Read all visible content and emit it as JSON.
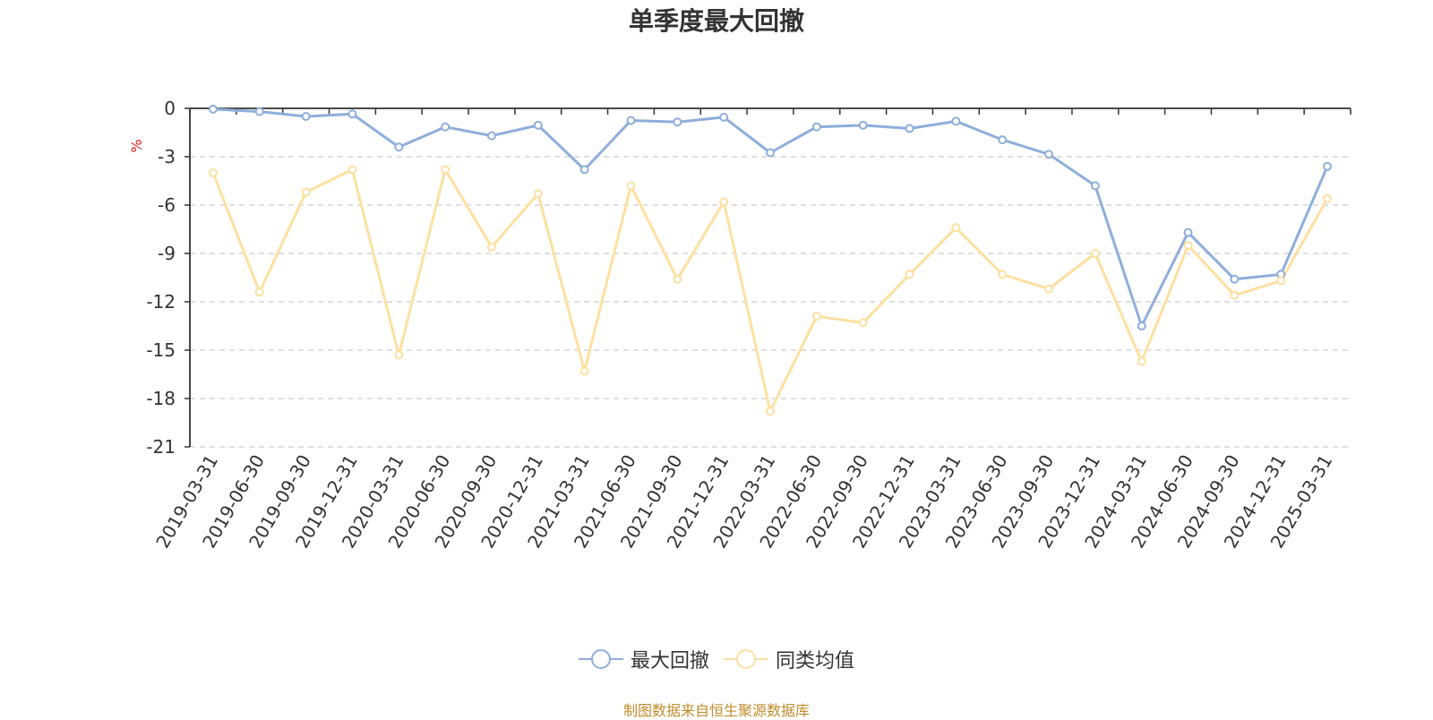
{
  "chart_data": {
    "type": "line",
    "title": "单季度最大回撤",
    "ylabel": "%",
    "ylim": [
      -21,
      0
    ],
    "yticks": [
      0,
      -3,
      -6,
      -9,
      -12,
      -15,
      -18,
      -21
    ],
    "grid": true,
    "legend_position": "bottom",
    "categories": [
      "2019-03-31",
      "2019-06-30",
      "2019-09-30",
      "2019-12-31",
      "2020-03-31",
      "2020-06-30",
      "2020-09-30",
      "2020-12-31",
      "2021-03-31",
      "2021-06-30",
      "2021-09-30",
      "2021-12-31",
      "2022-03-31",
      "2022-06-30",
      "2022-09-30",
      "2022-12-31",
      "2023-03-31",
      "2023-06-30",
      "2023-09-30",
      "2023-12-31",
      "2024-03-31",
      "2024-06-30",
      "2024-09-30",
      "2024-12-31",
      "2025-03-31"
    ],
    "series": [
      {
        "name": "最大回撤",
        "color": "#8eaedb",
        "values": [
          -0.05,
          -0.2,
          -0.5,
          -0.35,
          -2.4,
          -1.15,
          -1.7,
          -1.05,
          -3.8,
          -0.75,
          -0.85,
          -0.55,
          -2.75,
          -1.15,
          -1.05,
          -1.25,
          -0.8,
          -1.95,
          -2.85,
          -4.8,
          -13.5,
          -7.7,
          -10.6,
          -10.3,
          -3.6
        ]
      },
      {
        "name": "同类均值",
        "color": "#fde0a0",
        "values": [
          -4.0,
          -11.4,
          -5.2,
          -3.8,
          -15.3,
          -3.8,
          -8.6,
          -5.3,
          -16.3,
          -4.8,
          -10.6,
          -5.8,
          -18.8,
          -12.9,
          -13.3,
          -10.3,
          -7.4,
          -10.3,
          -11.2,
          -9.0,
          -15.7,
          -8.5,
          -11.6,
          -10.7,
          -5.6
        ]
      }
    ]
  },
  "source_note": "制图数据来自恒生聚源数据库"
}
